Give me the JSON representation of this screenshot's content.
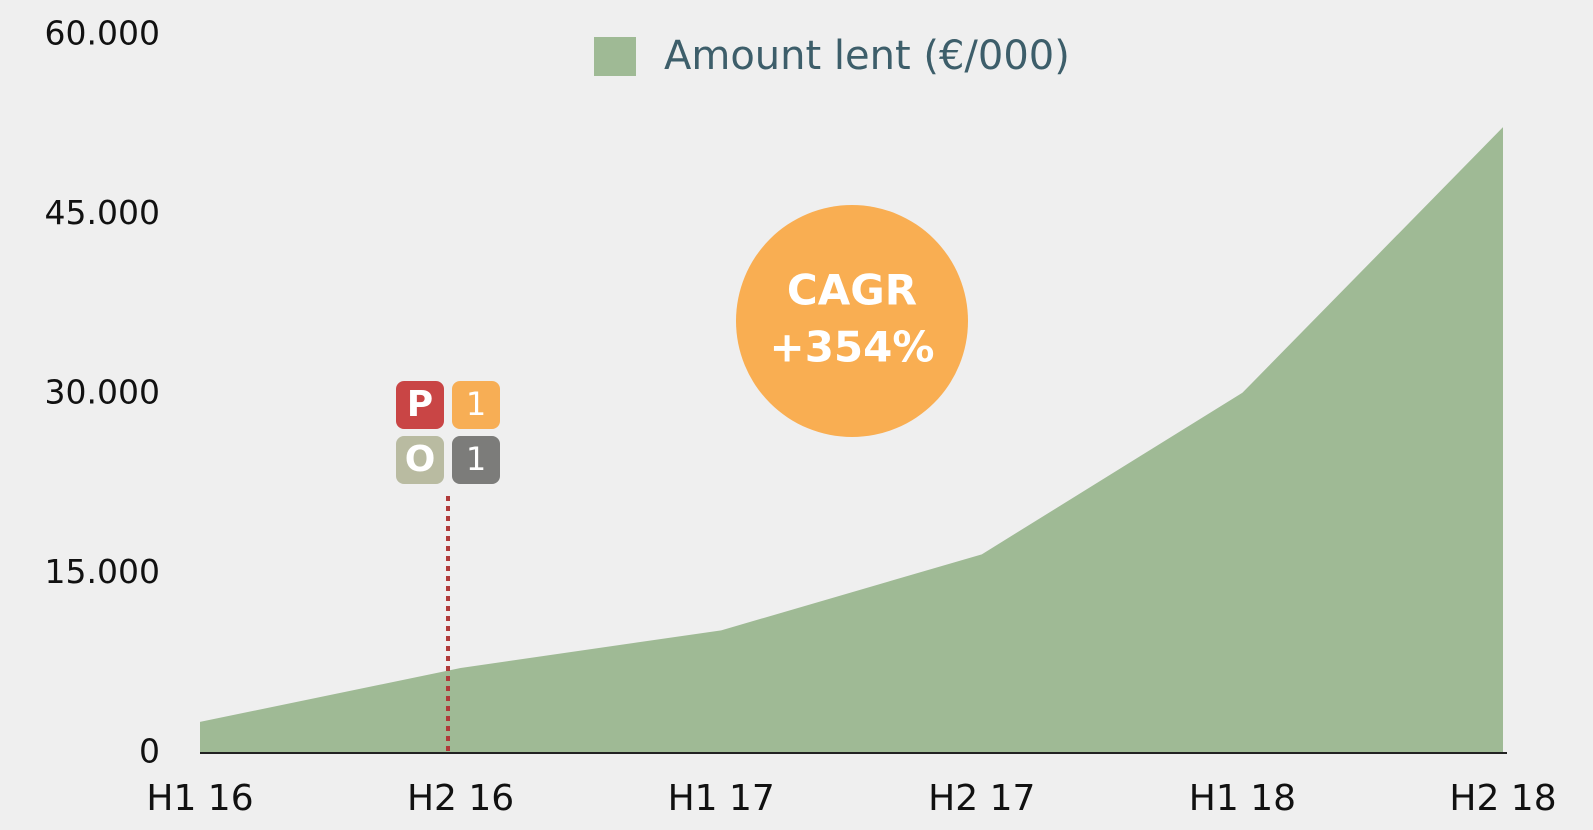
{
  "chart_data": {
    "type": "area",
    "legend_label": "Amount lent (€/000)",
    "categories": [
      "H1 16",
      "H2 16",
      "H1 17",
      "H2 17",
      "H1 18",
      "H2 18"
    ],
    "series": [
      {
        "name": "Amount lent (€/000)",
        "color": "#9fba95",
        "values": [
          2600,
          7100,
          10250,
          16600,
          30100,
          52300
        ]
      }
    ],
    "ylim": [
      0,
      60000
    ],
    "yticks": [
      0,
      {
        "value": 15000,
        "label": "15.000"
      },
      {
        "value": 30000,
        "label": "30.000"
      },
      {
        "value": 45000,
        "label": "45.000"
      },
      {
        "value": 60000,
        "label": "60.000"
      }
    ],
    "annotation": {
      "line1": "CAGR",
      "line2": "+354%"
    },
    "logo": [
      "P",
      "1",
      "O",
      "1"
    ]
  }
}
